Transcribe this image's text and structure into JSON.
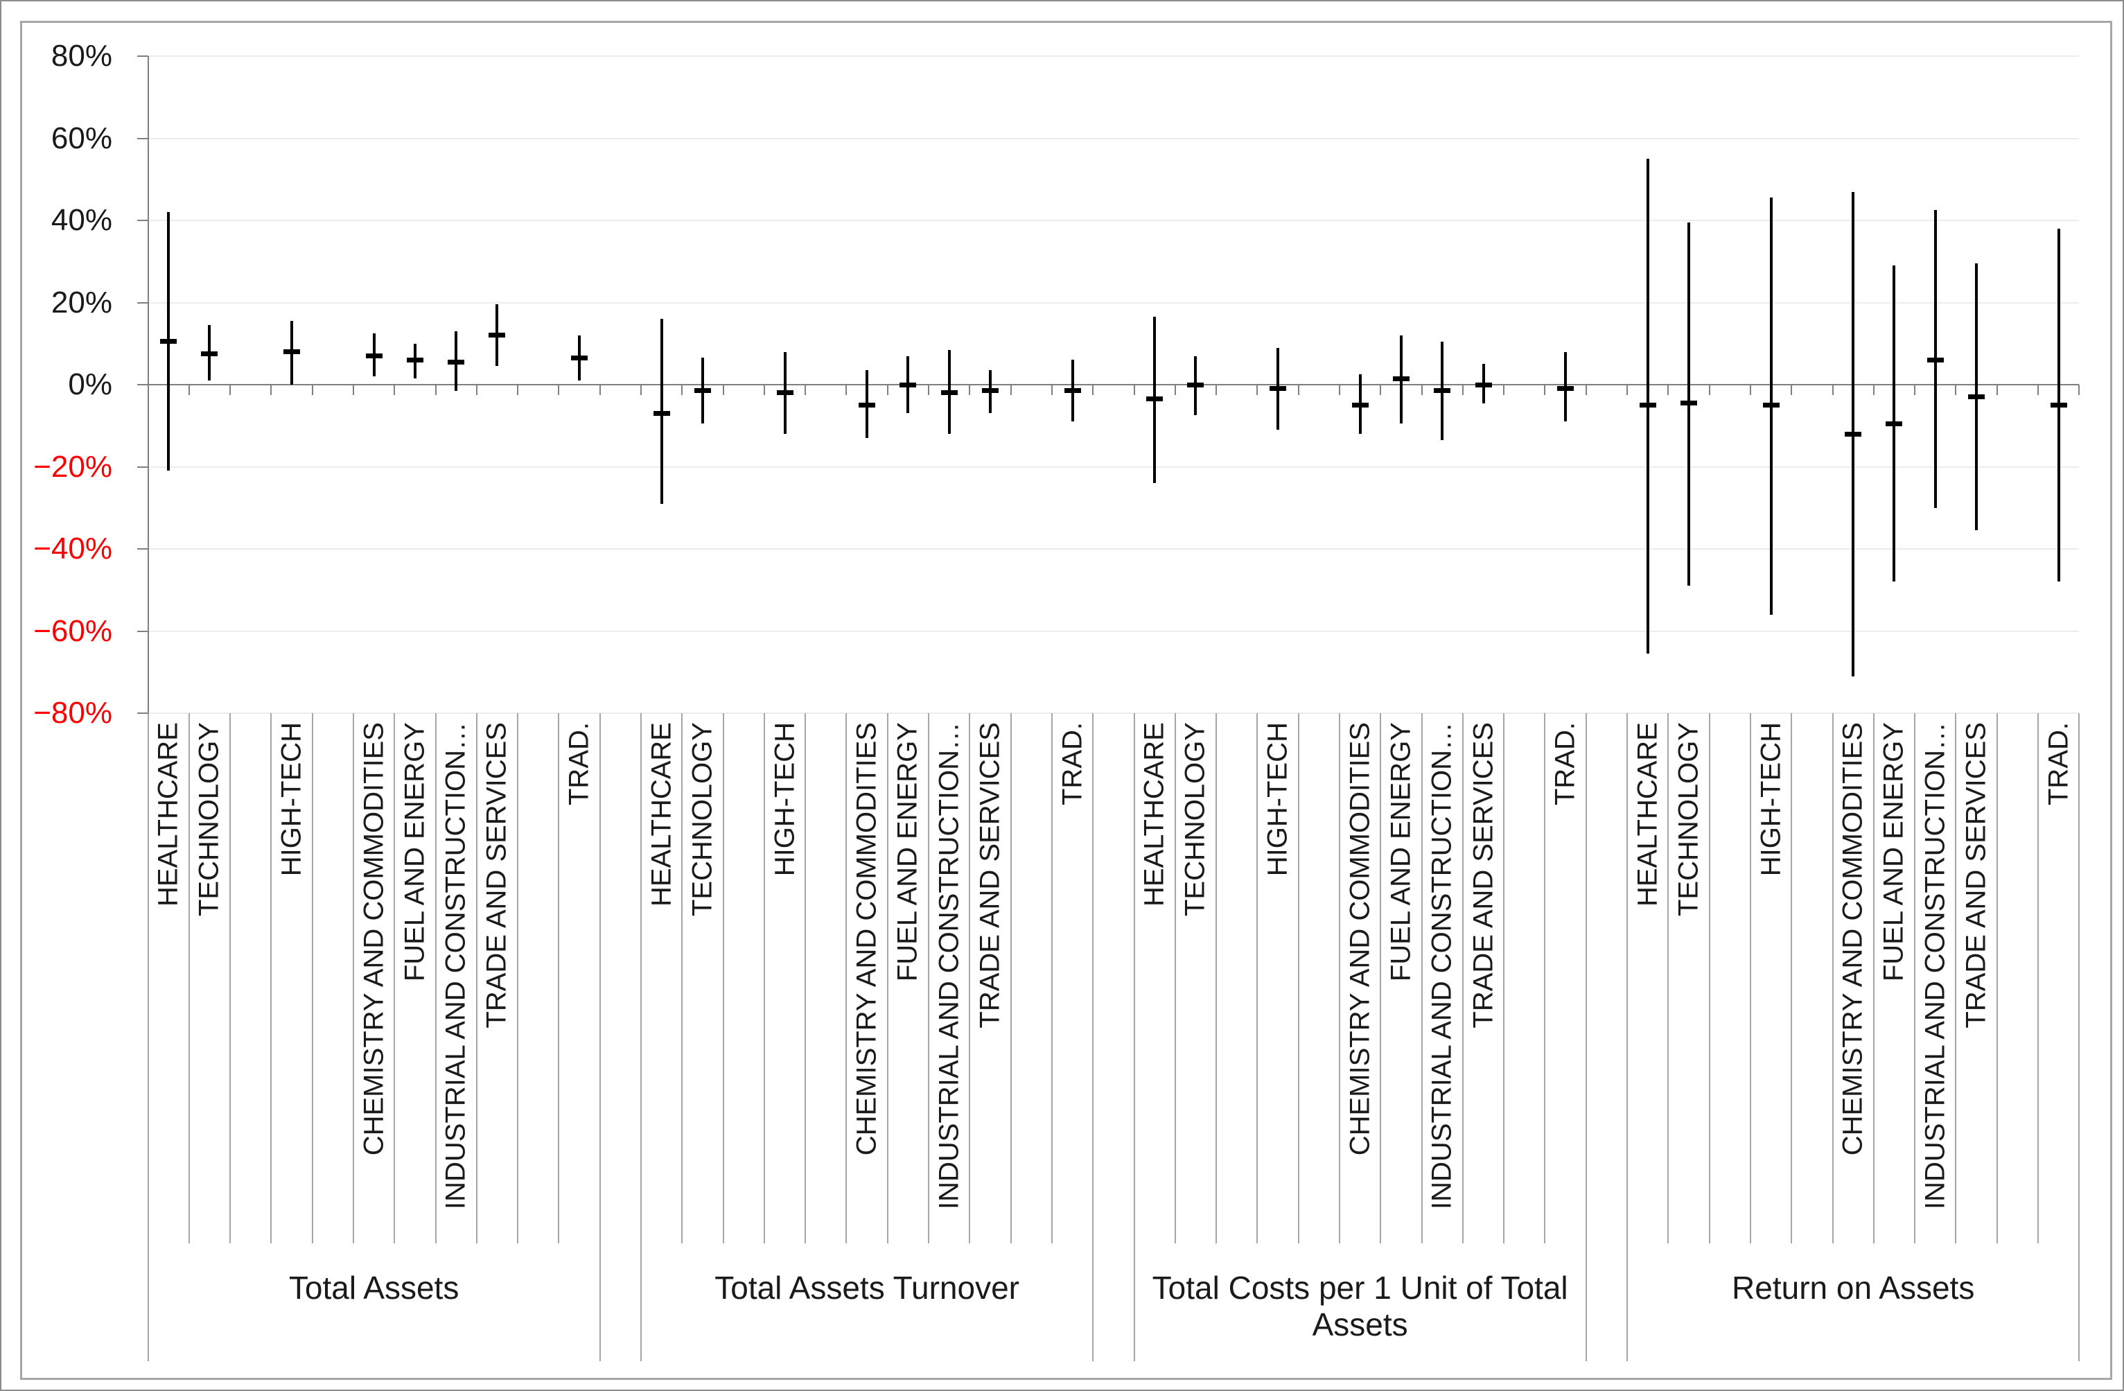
{
  "chart_data": {
    "type": "hilo",
    "variant": "high-low-mean error bars",
    "title": "",
    "ylabel": "",
    "xlabel": "",
    "ylim": [
      -80,
      80
    ],
    "grid": true,
    "legend_position": "none",
    "y_ticks": [
      {
        "label": "80%",
        "value": 80,
        "negative": false
      },
      {
        "label": "60%",
        "value": 60,
        "negative": false
      },
      {
        "label": "40%",
        "value": 40,
        "negative": false
      },
      {
        "label": "20%",
        "value": 20,
        "negative": false
      },
      {
        "label": "0%",
        "value": 0,
        "negative": false
      },
      {
        "label": "−20%",
        "value": -20,
        "negative": true
      },
      {
        "label": "−40%",
        "value": -40,
        "negative": true
      },
      {
        "label": "−60%",
        "value": -60,
        "negative": true
      },
      {
        "label": "−80%",
        "value": -80,
        "negative": true
      }
    ],
    "groups": [
      {
        "label": "Total Assets",
        "items": [
          {
            "name": "HEALTHCARE",
            "high": 42,
            "mean": 10.5,
            "low": -21
          },
          {
            "name": "TECHNOLOGY",
            "high": 14.5,
            "mean": 7.5,
            "low": 1
          },
          {
            "name": "HIGH-TECH",
            "high": 15.5,
            "mean": 8,
            "low": 0
          },
          {
            "name": "CHEMISTRY AND COMMODITIES",
            "high": 12.5,
            "mean": 7,
            "low": 2
          },
          {
            "name": "FUEL AND ENERGY",
            "high": 10,
            "mean": 6,
            "low": 1.5
          },
          {
            "name": "INDUSTRIAL AND CONSTRUCTION…",
            "high": 13,
            "mean": 5.5,
            "low": -1.5
          },
          {
            "name": "TRADE AND SERVICES",
            "high": 19.5,
            "mean": 12,
            "low": 4.5
          },
          {
            "name": "TRAD.",
            "high": 12,
            "mean": 6.5,
            "low": 1
          }
        ]
      },
      {
        "label": "Total Assets Turnover",
        "items": [
          {
            "name": "HEALTHCARE",
            "high": 16,
            "mean": -7,
            "low": -29
          },
          {
            "name": "TECHNOLOGY",
            "high": 6.5,
            "mean": -1.5,
            "low": -9.5
          },
          {
            "name": "HIGH-TECH",
            "high": 8,
            "mean": -2,
            "low": -12
          },
          {
            "name": "CHEMISTRY AND COMMODITIES",
            "high": 3.5,
            "mean": -5,
            "low": -13
          },
          {
            "name": "FUEL AND ENERGY",
            "high": 7,
            "mean": 0,
            "low": -7
          },
          {
            "name": "INDUSTRIAL AND CONSTRUCTION…",
            "high": 8.5,
            "mean": -2,
            "low": -12
          },
          {
            "name": "TRADE AND SERVICES",
            "high": 3.5,
            "mean": -1.5,
            "low": -7
          },
          {
            "name": "TRAD.",
            "high": 6,
            "mean": -1.5,
            "low": -9
          }
        ]
      },
      {
        "label": "Total Costs per 1 Unit of Total Assets",
        "items": [
          {
            "name": "HEALTHCARE",
            "high": 16.5,
            "mean": -3.5,
            "low": -24
          },
          {
            "name": "TECHNOLOGY",
            "high": 7,
            "mean": 0,
            "low": -7.5
          },
          {
            "name": "HIGH-TECH",
            "high": 9,
            "mean": -1,
            "low": -11
          },
          {
            "name": "CHEMISTRY AND COMMODITIES",
            "high": 2.5,
            "mean": -5,
            "low": -12
          },
          {
            "name": "FUEL AND ENERGY",
            "high": 12,
            "mean": 1.5,
            "low": -9.5
          },
          {
            "name": "INDUSTRIAL AND CONSTRUCTION…",
            "high": 10.5,
            "mean": -1.5,
            "low": -13.5
          },
          {
            "name": "TRADE AND SERVICES",
            "high": 5,
            "mean": 0,
            "low": -4.5
          },
          {
            "name": "TRAD.",
            "high": 8,
            "mean": -1,
            "low": -9
          }
        ]
      },
      {
        "label": "Return on Assets",
        "items": [
          {
            "name": "HEALTHCARE",
            "high": 55,
            "mean": -5,
            "low": -65.5
          },
          {
            "name": "TECHNOLOGY",
            "high": 39.5,
            "mean": -4.5,
            "low": -49
          },
          {
            "name": "HIGH-TECH",
            "high": 45.5,
            "mean": -5,
            "low": -56
          },
          {
            "name": "CHEMISTRY AND COMMODITIES",
            "high": 47,
            "mean": -12,
            "low": -71
          },
          {
            "name": "FUEL AND ENERGY",
            "high": 29,
            "mean": -9.5,
            "low": -48
          },
          {
            "name": "INDUSTRIAL AND CONSTRUCTION…",
            "high": 42.5,
            "mean": 6,
            "low": -30
          },
          {
            "name": "TRADE AND SERVICES",
            "high": 29.5,
            "mean": -3,
            "low": -35.5
          },
          {
            "name": "TRAD.",
            "high": 38,
            "mean": -5,
            "low": -48
          }
        ]
      }
    ],
    "colors": {
      "bar": "#000000",
      "negative_tick_label": "#ff0000",
      "axis": "#808080",
      "gridline": "#ececec",
      "separator": "#a6a6a6",
      "frame": "#a6a6a6",
      "text": "#1a1a1a"
    }
  }
}
